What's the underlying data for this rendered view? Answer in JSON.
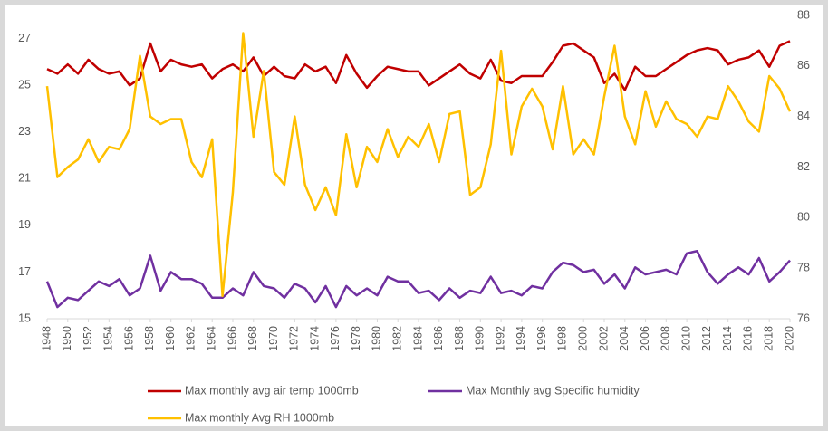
{
  "chart_data": {
    "type": "line",
    "x": [
      1948,
      1949,
      1950,
      1951,
      1952,
      1953,
      1954,
      1955,
      1956,
      1957,
      1958,
      1959,
      1960,
      1961,
      1962,
      1963,
      1964,
      1965,
      1966,
      1967,
      1968,
      1969,
      1970,
      1971,
      1972,
      1973,
      1974,
      1975,
      1976,
      1977,
      1978,
      1979,
      1980,
      1981,
      1982,
      1983,
      1984,
      1985,
      1986,
      1987,
      1988,
      1989,
      1990,
      1991,
      1992,
      1993,
      1994,
      1995,
      1996,
      1997,
      1998,
      1999,
      2000,
      2001,
      2002,
      2003,
      2004,
      2005,
      2006,
      2007,
      2008,
      2009,
      2010,
      2011,
      2012,
      2013,
      2014,
      2015,
      2016,
      2017,
      2018,
      2019,
      2020
    ],
    "xlim": [
      1948,
      2020
    ],
    "xticks": [
      1948,
      1950,
      1952,
      1954,
      1956,
      1958,
      1960,
      1962,
      1964,
      1966,
      1968,
      1970,
      1972,
      1974,
      1976,
      1978,
      1980,
      1982,
      1984,
      1986,
      1988,
      1990,
      1992,
      1994,
      1996,
      1998,
      2000,
      2002,
      2004,
      2006,
      2008,
      2010,
      2012,
      2014,
      2016,
      2018,
      2020
    ],
    "ylim": [
      15,
      28
    ],
    "yticks": [
      15,
      17,
      19,
      21,
      23,
      25,
      27
    ],
    "y2lim": [
      76,
      88
    ],
    "y2ticks": [
      76,
      78,
      80,
      82,
      84,
      86,
      88
    ],
    "series": [
      {
        "name": "Max monthly avg air temp 1000mb",
        "color": "#c00000",
        "values": [
          25.7,
          25.5,
          25.9,
          25.5,
          26.1,
          25.7,
          25.5,
          25.6,
          25.0,
          25.3,
          26.8,
          25.6,
          26.1,
          25.9,
          25.8,
          25.9,
          25.3,
          25.7,
          25.9,
          25.6,
          26.2,
          25.4,
          25.8,
          25.4,
          25.3,
          25.9,
          25.6,
          25.8,
          25.1,
          26.3,
          25.5,
          24.9,
          25.4,
          25.8,
          25.7,
          25.6,
          25.6,
          25.0,
          25.3,
          25.6,
          25.9,
          25.5,
          25.3,
          26.1,
          25.2,
          25.1,
          25.4,
          25.4,
          25.4,
          26.0,
          26.7,
          26.8,
          26.5,
          26.2,
          25.1,
          25.5,
          24.8,
          25.8,
          25.4,
          25.4,
          25.7,
          26.0,
          26.3,
          26.5,
          26.6,
          26.5,
          25.9,
          26.1,
          26.2,
          26.5,
          25.8,
          26.7,
          26.9
        ]
      },
      {
        "name": "Max Monthly avg Specific humidity",
        "color": "#7030a0",
        "values": [
          16.6,
          15.5,
          15.9,
          15.8,
          16.2,
          16.6,
          16.4,
          16.7,
          16.0,
          16.3,
          17.7,
          16.2,
          17.0,
          16.7,
          16.7,
          16.5,
          15.9,
          15.9,
          16.3,
          16.0,
          17.0,
          16.4,
          16.3,
          15.9,
          16.5,
          16.3,
          15.7,
          16.4,
          15.5,
          16.4,
          16.0,
          16.3,
          16.0,
          16.8,
          16.6,
          16.6,
          16.1,
          16.2,
          15.8,
          16.3,
          15.9,
          16.2,
          16.1,
          16.8,
          16.1,
          16.2,
          16.0,
          16.4,
          16.3,
          17.0,
          17.4,
          17.3,
          17.0,
          17.1,
          16.5,
          16.9,
          16.3,
          17.2,
          16.9,
          17.0,
          17.1,
          16.9,
          17.8,
          17.9,
          17.0,
          16.5,
          16.9,
          17.2,
          16.9,
          17.6,
          16.6,
          17.0,
          17.5
        ]
      },
      {
        "name": "Max monthly Avg RH 1000mb",
        "color": "#ffc000",
        "axis": "y2",
        "values": [
          85.2,
          81.6,
          82.0,
          82.3,
          83.1,
          82.2,
          82.8,
          82.7,
          83.5,
          86.4,
          84.0,
          83.7,
          83.9,
          83.9,
          82.2,
          81.6,
          83.1,
          76.9,
          81.0,
          87.3,
          83.2,
          85.8,
          81.8,
          81.3,
          84.0,
          81.3,
          80.3,
          81.2,
          80.1,
          83.3,
          81.2,
          82.8,
          82.2,
          83.5,
          82.4,
          83.2,
          82.8,
          83.7,
          82.2,
          84.1,
          84.2,
          80.9,
          81.2,
          82.9,
          86.6,
          82.5,
          84.4,
          85.1,
          84.4,
          82.7,
          85.2,
          82.5,
          83.1,
          82.5,
          84.8,
          86.8,
          84.0,
          82.9,
          85.0,
          83.6,
          84.6,
          83.9,
          83.7,
          83.2,
          84.0,
          83.9,
          85.2,
          84.6,
          83.8,
          83.4,
          85.6,
          85.1,
          84.2
        ]
      }
    ]
  }
}
